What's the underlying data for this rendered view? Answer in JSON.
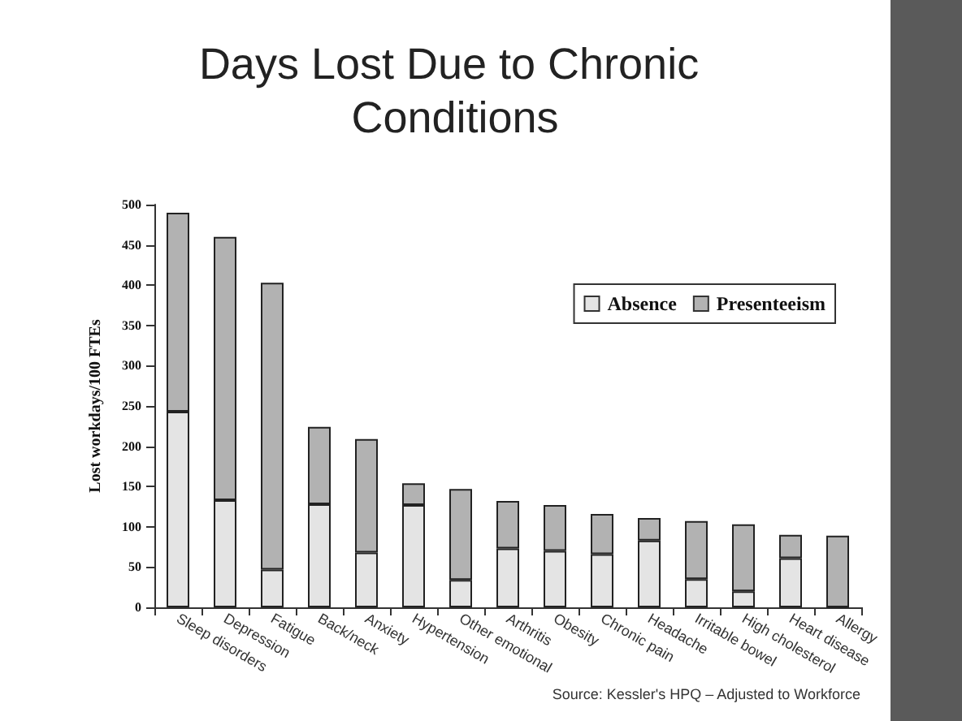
{
  "chart_data": {
    "type": "bar",
    "title": "Days Lost Due to Chronic Conditions",
    "ylabel": "Lost workdays/100 FTEs",
    "categories": [
      "Sleep disorders",
      "Depression",
      "Fatigue",
      "Back/neck",
      "Anxiety",
      "Hypertension",
      "Other emotional",
      "Arthritis",
      "Obesity",
      "Chronic pain",
      "Headache",
      "Irritable bowel",
      "High cholesterol",
      "Heart disease",
      "Allergy"
    ],
    "series": [
      {
        "name": "Absence",
        "color": "#e4e4e4",
        "values": [
          243,
          133,
          47,
          128,
          68,
          127,
          34,
          73,
          70,
          66,
          83,
          35,
          20,
          61,
          0
        ]
      },
      {
        "name": "Presenteeism",
        "color": "#b2b2b2",
        "values": [
          247,
          327,
          356,
          96,
          141,
          27,
          113,
          59,
          57,
          50,
          28,
          72,
          83,
          29,
          89
        ]
      }
    ],
    "stacked": true,
    "ylim": [
      0,
      500
    ],
    "yticks": [
      0,
      50,
      100,
      150,
      200,
      250,
      300,
      350,
      400,
      450,
      500
    ],
    "grid": false,
    "legend": "top right",
    "annotations": [
      "Source: Kessler's HPQ – Adjusted to Workforce"
    ]
  }
}
